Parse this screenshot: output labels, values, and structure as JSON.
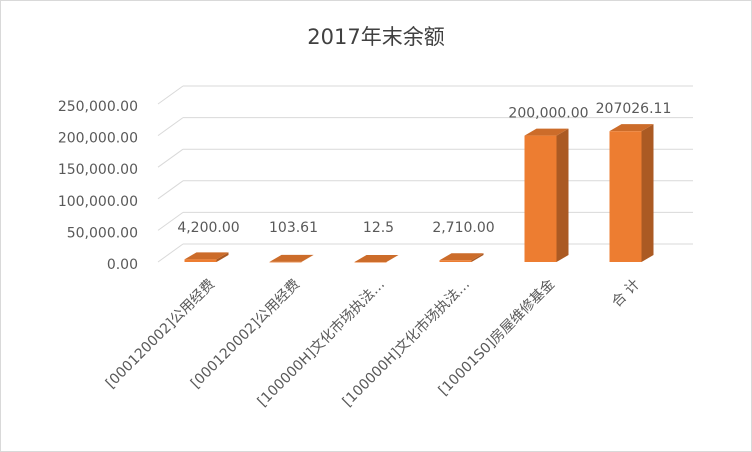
{
  "chart_data": {
    "type": "bar3d",
    "title": "2017年末余额",
    "categories": [
      "[000120002]公用经费",
      "[000120002]公用经费",
      "[100000H]文化市场执法…",
      "[100000H]文化市场执法…",
      "[10001S0]房屋维修基金",
      "合  计"
    ],
    "values": [
      4200,
      103.61,
      12.5,
      2710,
      200000,
      207026.11
    ],
    "value_labels": [
      "4,200.00",
      "103.61",
      "12.5",
      "2,710.00",
      "200,000.00",
      "207026.11"
    ],
    "color": "#ed7d31",
    "ylim": [
      0,
      250000
    ],
    "yticks": [
      {
        "value": 0,
        "label": "0.00"
      },
      {
        "value": 50000,
        "label": "50,000.00"
      },
      {
        "value": 100000,
        "label": "100,000.00"
      },
      {
        "value": 150000,
        "label": "150,000.00"
      },
      {
        "value": 200000,
        "label": "200,000.00"
      },
      {
        "value": 250000,
        "label": "250,000.00"
      }
    ],
    "grid": true
  }
}
